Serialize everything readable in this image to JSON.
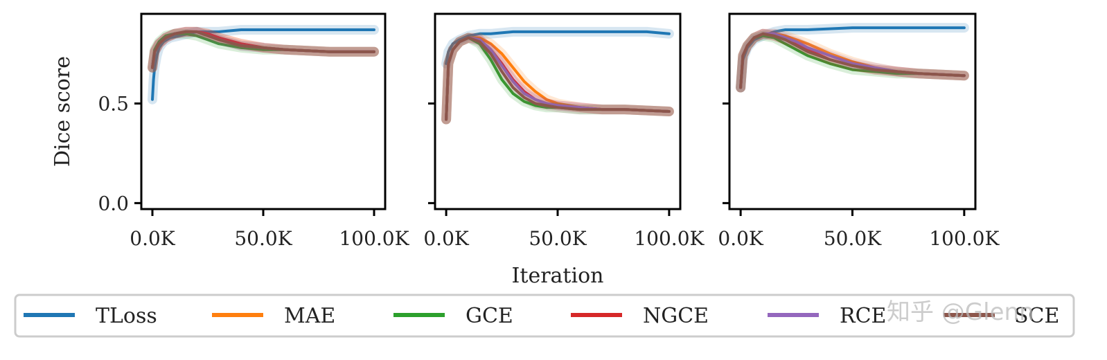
{
  "chart_data": [
    {
      "type": "line",
      "panel": 1,
      "xlabel": "",
      "ylabel": "Dice score",
      "xlim": [
        -5000,
        105000
      ],
      "ylim": [
        -0.03,
        0.95
      ],
      "xticks": [
        0,
        50000,
        100000
      ],
      "xtick_labels": [
        "0.0K",
        "50.0K",
        "100.0K"
      ],
      "yticks": [
        0.0,
        0.5
      ],
      "ytick_labels": [
        "0.0",
        "0.5"
      ],
      "grid": false,
      "series": [
        {
          "name": "TLoss",
          "color": "#1f77b4",
          "x": [
            0,
            500,
            1000,
            2000,
            3000,
            5000,
            8000,
            12000,
            16000,
            20000,
            30000,
            40000,
            60000,
            80000,
            100000
          ],
          "y": [
            0.52,
            0.62,
            0.68,
            0.74,
            0.78,
            0.81,
            0.83,
            0.84,
            0.85,
            0.86,
            0.86,
            0.87,
            0.87,
            0.87,
            0.87
          ]
        },
        {
          "name": "MAE",
          "color": "#ff7f0e",
          "x": [
            0,
            1000,
            3000,
            6000,
            10000,
            15000,
            20000,
            25000,
            30000,
            40000,
            50000,
            60000,
            80000,
            100000
          ],
          "y": [
            0.68,
            0.76,
            0.8,
            0.83,
            0.85,
            0.86,
            0.86,
            0.85,
            0.83,
            0.8,
            0.78,
            0.77,
            0.76,
            0.76
          ]
        },
        {
          "name": "GCE",
          "color": "#2ca02c",
          "x": [
            0,
            1000,
            3000,
            6000,
            10000,
            15000,
            20000,
            25000,
            30000,
            40000,
            50000,
            60000,
            80000,
            100000
          ],
          "y": [
            0.68,
            0.77,
            0.81,
            0.84,
            0.85,
            0.85,
            0.84,
            0.82,
            0.8,
            0.78,
            0.77,
            0.77,
            0.76,
            0.76
          ]
        },
        {
          "name": "NGCE",
          "color": "#d62728",
          "x": [
            0,
            1000,
            3000,
            6000,
            10000,
            15000,
            20000,
            25000,
            30000,
            40000,
            50000,
            60000,
            80000,
            100000
          ],
          "y": [
            0.68,
            0.76,
            0.8,
            0.83,
            0.85,
            0.86,
            0.86,
            0.85,
            0.83,
            0.8,
            0.78,
            0.77,
            0.76,
            0.76
          ]
        },
        {
          "name": "RCE",
          "color": "#9467bd",
          "x": [
            0,
            1000,
            3000,
            6000,
            10000,
            15000,
            20000,
            25000,
            30000,
            40000,
            50000,
            60000,
            80000,
            100000
          ],
          "y": [
            0.68,
            0.76,
            0.8,
            0.83,
            0.85,
            0.86,
            0.86,
            0.84,
            0.82,
            0.79,
            0.78,
            0.77,
            0.76,
            0.76
          ]
        },
        {
          "name": "SCE",
          "color": "#8c564b",
          "x": [
            0,
            1000,
            3000,
            6000,
            10000,
            15000,
            20000,
            25000,
            30000,
            40000,
            50000,
            60000,
            80000,
            100000
          ],
          "y": [
            0.68,
            0.76,
            0.8,
            0.83,
            0.85,
            0.86,
            0.86,
            0.84,
            0.82,
            0.79,
            0.78,
            0.77,
            0.76,
            0.76
          ]
        }
      ]
    },
    {
      "type": "line",
      "panel": 2,
      "xlabel": "Iteration",
      "ylabel": "",
      "xlim": [
        -5000,
        105000
      ],
      "ylim": [
        -0.03,
        0.95
      ],
      "xticks": [
        0,
        50000,
        100000
      ],
      "xtick_labels": [
        "0.0K",
        "50.0K",
        "100.0K"
      ],
      "yticks": [
        0.0,
        0.5
      ],
      "ytick_labels": [],
      "grid": false,
      "series": [
        {
          "name": "TLoss",
          "color": "#1f77b4",
          "x": [
            0,
            1000,
            3000,
            6000,
            10000,
            15000,
            20000,
            30000,
            50000,
            70000,
            90000,
            100000
          ],
          "y": [
            0.7,
            0.76,
            0.8,
            0.82,
            0.84,
            0.85,
            0.85,
            0.86,
            0.86,
            0.86,
            0.86,
            0.85
          ]
        },
        {
          "name": "MAE",
          "color": "#ff7f0e",
          "x": [
            0,
            1000,
            3000,
            6000,
            10000,
            15000,
            20000,
            25000,
            30000,
            35000,
            40000,
            45000,
            50000,
            60000,
            70000,
            80000,
            100000
          ],
          "y": [
            0.42,
            0.7,
            0.77,
            0.81,
            0.83,
            0.83,
            0.8,
            0.75,
            0.68,
            0.61,
            0.56,
            0.52,
            0.5,
            0.48,
            0.47,
            0.47,
            0.46
          ]
        },
        {
          "name": "GCE",
          "color": "#2ca02c",
          "x": [
            0,
            1000,
            3000,
            6000,
            10000,
            15000,
            20000,
            25000,
            30000,
            35000,
            40000,
            45000,
            50000,
            60000,
            70000,
            80000,
            100000
          ],
          "y": [
            0.42,
            0.7,
            0.77,
            0.81,
            0.83,
            0.8,
            0.72,
            0.62,
            0.55,
            0.51,
            0.49,
            0.48,
            0.48,
            0.47,
            0.47,
            0.47,
            0.46
          ]
        },
        {
          "name": "NGCE",
          "color": "#d62728",
          "x": [
            0,
            1000,
            3000,
            6000,
            10000,
            15000,
            20000,
            25000,
            30000,
            35000,
            40000,
            45000,
            50000,
            60000,
            70000,
            80000,
            100000
          ],
          "y": [
            0.42,
            0.7,
            0.77,
            0.81,
            0.83,
            0.82,
            0.77,
            0.7,
            0.62,
            0.56,
            0.52,
            0.5,
            0.49,
            0.48,
            0.47,
            0.47,
            0.46
          ]
        },
        {
          "name": "RCE",
          "color": "#9467bd",
          "x": [
            0,
            1000,
            3000,
            6000,
            10000,
            15000,
            20000,
            25000,
            30000,
            35000,
            40000,
            45000,
            50000,
            60000,
            70000,
            80000,
            100000
          ],
          "y": [
            0.42,
            0.7,
            0.77,
            0.81,
            0.83,
            0.82,
            0.77,
            0.69,
            0.61,
            0.55,
            0.52,
            0.5,
            0.49,
            0.48,
            0.47,
            0.47,
            0.46
          ]
        },
        {
          "name": "SCE",
          "color": "#8c564b",
          "x": [
            0,
            1000,
            3000,
            6000,
            10000,
            15000,
            20000,
            25000,
            30000,
            35000,
            40000,
            45000,
            50000,
            60000,
            70000,
            80000,
            100000
          ],
          "y": [
            0.42,
            0.7,
            0.77,
            0.81,
            0.83,
            0.81,
            0.75,
            0.66,
            0.58,
            0.53,
            0.5,
            0.49,
            0.48,
            0.47,
            0.47,
            0.47,
            0.46
          ]
        }
      ]
    },
    {
      "type": "line",
      "panel": 3,
      "xlabel": "",
      "ylabel": "",
      "xlim": [
        -5000,
        105000
      ],
      "ylim": [
        -0.03,
        0.95
      ],
      "xticks": [
        0,
        50000,
        100000
      ],
      "xtick_labels": [
        "0.0K",
        "50.0K",
        "100.0K"
      ],
      "yticks": [
        0.0,
        0.5
      ],
      "ytick_labels": [],
      "grid": false,
      "series": [
        {
          "name": "TLoss",
          "color": "#1f77b4",
          "x": [
            0,
            1000,
            3000,
            6000,
            10000,
            15000,
            20000,
            30000,
            50000,
            70000,
            90000,
            100000
          ],
          "y": [
            0.58,
            0.72,
            0.78,
            0.82,
            0.84,
            0.86,
            0.87,
            0.87,
            0.88,
            0.88,
            0.88,
            0.88
          ]
        },
        {
          "name": "MAE",
          "color": "#ff7f0e",
          "x": [
            0,
            1000,
            3000,
            6000,
            10000,
            15000,
            20000,
            25000,
            30000,
            40000,
            50000,
            60000,
            70000,
            80000,
            100000
          ],
          "y": [
            0.58,
            0.74,
            0.79,
            0.83,
            0.85,
            0.85,
            0.84,
            0.82,
            0.8,
            0.75,
            0.71,
            0.68,
            0.66,
            0.65,
            0.64
          ]
        },
        {
          "name": "GCE",
          "color": "#2ca02c",
          "x": [
            0,
            1000,
            3000,
            6000,
            10000,
            15000,
            20000,
            25000,
            30000,
            40000,
            50000,
            60000,
            70000,
            80000,
            100000
          ],
          "y": [
            0.58,
            0.74,
            0.79,
            0.83,
            0.84,
            0.83,
            0.8,
            0.77,
            0.74,
            0.7,
            0.67,
            0.66,
            0.65,
            0.65,
            0.64
          ]
        },
        {
          "name": "NGCE",
          "color": "#d62728",
          "x": [
            0,
            1000,
            3000,
            6000,
            10000,
            15000,
            20000,
            25000,
            30000,
            40000,
            50000,
            60000,
            70000,
            80000,
            100000
          ],
          "y": [
            0.58,
            0.74,
            0.79,
            0.83,
            0.85,
            0.84,
            0.82,
            0.8,
            0.77,
            0.72,
            0.69,
            0.67,
            0.66,
            0.65,
            0.64
          ]
        },
        {
          "name": "RCE",
          "color": "#9467bd",
          "x": [
            0,
            1000,
            3000,
            6000,
            10000,
            15000,
            20000,
            25000,
            30000,
            40000,
            50000,
            60000,
            70000,
            80000,
            100000
          ],
          "y": [
            0.58,
            0.74,
            0.79,
            0.83,
            0.85,
            0.85,
            0.83,
            0.81,
            0.78,
            0.74,
            0.7,
            0.68,
            0.66,
            0.65,
            0.64
          ]
        },
        {
          "name": "SCE",
          "color": "#8c564b",
          "x": [
            0,
            1000,
            3000,
            6000,
            10000,
            15000,
            20000,
            25000,
            30000,
            40000,
            50000,
            60000,
            70000,
            80000,
            100000
          ],
          "y": [
            0.58,
            0.74,
            0.79,
            0.83,
            0.85,
            0.84,
            0.82,
            0.79,
            0.76,
            0.72,
            0.69,
            0.67,
            0.66,
            0.65,
            0.64
          ]
        }
      ]
    }
  ],
  "legend": {
    "placement": "bottom",
    "entries": [
      {
        "label": "TLoss",
        "color": "#1f77b4"
      },
      {
        "label": "MAE",
        "color": "#ff7f0e"
      },
      {
        "label": "GCE",
        "color": "#2ca02c"
      },
      {
        "label": "NGCE",
        "color": "#d62728"
      },
      {
        "label": "RCE",
        "color": "#9467bd"
      },
      {
        "label": "SCE",
        "color": "#8c564b"
      }
    ]
  },
  "watermark": "知乎 @Glenn"
}
